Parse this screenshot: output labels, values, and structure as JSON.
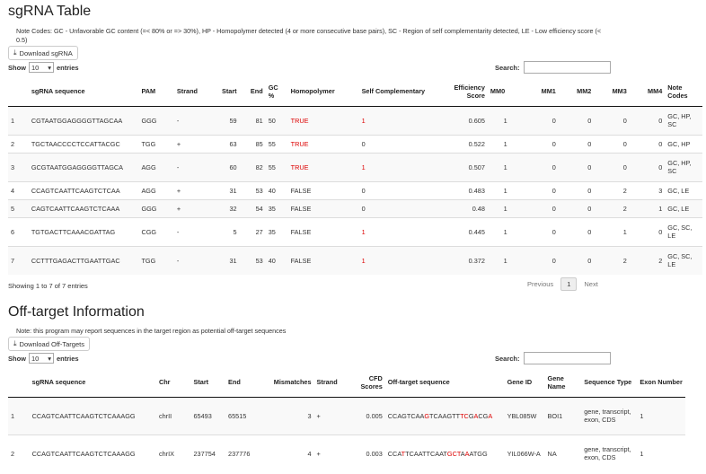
{
  "sg": {
    "title": "sgRNA Table",
    "note": "Note Codes: GC - Unfavorable GC content (=< 80% or => 30%), HP - Homopolymer detected (4 or more consecutive base pairs), SC - Region of self complementarity detected, LE - Low efficiency score (< 0.5)",
    "download_label": "Download sgRNA",
    "show_label": "Show",
    "entries_value": "10",
    "entries_label": "entries",
    "search_label": "Search:",
    "headers": [
      "",
      "sgRNA sequence",
      "PAM",
      "Strand",
      "Start",
      "End",
      "GC %",
      "Homopolymer",
      "Self Complementary",
      "Efficiency Score",
      "MM0",
      "MM1",
      "MM2",
      "MM3",
      "MM4",
      "Note Codes"
    ],
    "rows": [
      [
        "1",
        "CGTAATGGAGGGGTTAGCAA",
        "GGG",
        "-",
        "59",
        "81",
        "50",
        "TRUE",
        "1",
        "0.605",
        "1",
        "0",
        "0",
        "0",
        "0",
        "GC, HP, SC"
      ],
      [
        "2",
        "TGCTAACCCCTCCATTACGC",
        "TGG",
        "+",
        "63",
        "85",
        "55",
        "TRUE",
        "0",
        "0.522",
        "1",
        "0",
        "0",
        "0",
        "0",
        "GC, HP"
      ],
      [
        "3",
        "GCGTAATGGAGGGGTTAGCA",
        "AGG",
        "-",
        "60",
        "82",
        "55",
        "TRUE",
        "1",
        "0.507",
        "1",
        "0",
        "0",
        "0",
        "0",
        "GC, HP, SC"
      ],
      [
        "4",
        "CCAGTCAATTCAAGTCTCAA",
        "AGG",
        "+",
        "31",
        "53",
        "40",
        "FALSE",
        "0",
        "0.483",
        "1",
        "0",
        "0",
        "2",
        "3",
        "GC, LE"
      ],
      [
        "5",
        "CAGTCAATTCAAGTCTCAAA",
        "GGG",
        "+",
        "32",
        "54",
        "35",
        "FALSE",
        "0",
        "0.48",
        "1",
        "0",
        "0",
        "2",
        "1",
        "GC, LE"
      ],
      [
        "6",
        "TGTGACTTCAAACGATTAG",
        "CGG",
        "-",
        "5",
        "27",
        "35",
        "FALSE",
        "1",
        "0.445",
        "1",
        "0",
        "0",
        "1",
        "0",
        "GC, SC, LE"
      ],
      [
        "7",
        "CCTTTGAGACTTGAATTGAC",
        "TGG",
        "-",
        "31",
        "53",
        "40",
        "FALSE",
        "1",
        "0.372",
        "1",
        "0",
        "0",
        "2",
        "2",
        "GC, SC, LE"
      ]
    ],
    "info": "Showing 1 to 7 of 7 entries",
    "prev": "Previous",
    "page": "1",
    "next": "Next"
  },
  "off": {
    "title": "Off-target Information",
    "note": "Note: this program may report sequences in the target region as potential off-target sequences",
    "download_label": "Download Off-Targets",
    "show_label": "Show",
    "entries_value": "10",
    "entries_label": "entries",
    "search_label": "Search:",
    "headers": [
      "",
      "sgRNA sequence",
      "Chr",
      "Start",
      "End",
      "Mismatches",
      "Strand",
      "CFD Scores",
      "Off-target sequence",
      "Gene ID",
      "Gene Name",
      "Sequence Type",
      "Exon Number"
    ],
    "rows": [
      {
        "cells": [
          "1",
          "CCAGTCAATTCAAGTCTCAAAGG",
          "chrII",
          "65493",
          "65515",
          "3",
          "+",
          "0.005"
        ],
        "offseq": [
          [
            "CCAGTCAA",
            ""
          ],
          [
            "G",
            "red"
          ],
          [
            "TCAAGTT",
            ""
          ],
          [
            "TC",
            "red"
          ],
          [
            "G",
            ""
          ],
          [
            "A",
            "red"
          ],
          [
            "CG",
            ""
          ],
          [
            "A",
            "red"
          ]
        ],
        "tail": [
          "YBL085W",
          "BOI1",
          "gene, transcript, exon, CDS",
          "1"
        ]
      },
      {
        "cells": [
          "2",
          "CCAGTCAATTCAAGTCTCAAAGG",
          "chrIX",
          "237754",
          "237776",
          "4",
          "+",
          "0.003"
        ],
        "offseq": [
          [
            "CCA",
            ""
          ],
          [
            "T",
            "red"
          ],
          [
            "TCAATTCAAT",
            ""
          ],
          [
            "GCT",
            "red"
          ],
          [
            "A",
            ""
          ],
          [
            "A",
            "red"
          ],
          [
            "ATGG",
            ""
          ]
        ],
        "tail": [
          "YIL066W-A",
          "NA",
          "gene, transcript, exon, CDS",
          "1"
        ]
      }
    ]
  },
  "icons": {
    "download": "download-icon",
    "sort": "sort-icon"
  },
  "colors": {
    "flag_red": "#dd0000"
  }
}
